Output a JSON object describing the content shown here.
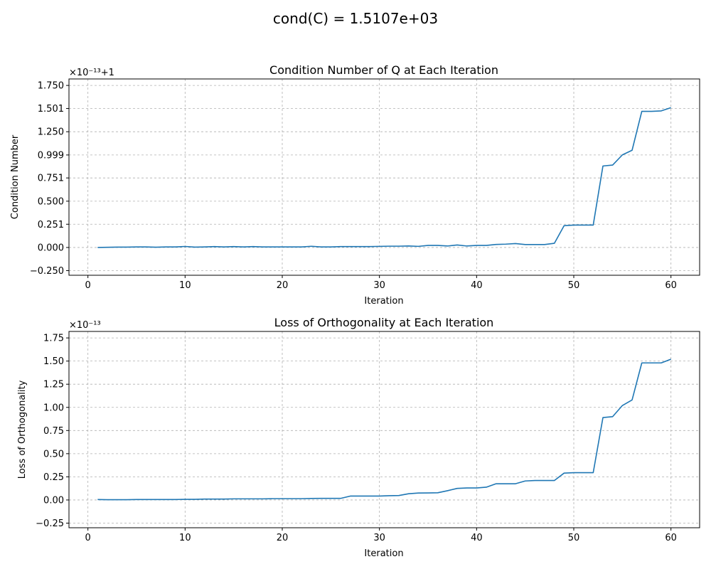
{
  "figure": {
    "suptitle": "cond(C) = 1.5107e+03"
  },
  "colors": {
    "line": "#1f77b4",
    "grid": "#b0b0b0"
  },
  "chart_data": [
    {
      "type": "line",
      "title": "Condition Number of Q at Each Iteration",
      "xlabel": "Iteration",
      "ylabel": "Condition Number",
      "offset_text": "×10⁻¹³+1",
      "grid": true,
      "xlim": [
        -1.95,
        62.95
      ],
      "ylim": [
        -0.3,
        1.82
      ],
      "x_ticks": [
        0,
        10,
        20,
        30,
        40,
        50,
        60
      ],
      "y_ticks": [
        -0.25,
        0.0,
        0.251,
        0.5,
        0.751,
        0.999,
        1.25,
        1.501,
        1.75
      ],
      "y_tick_labels": [
        "−0.250",
        "0.000",
        "0.251",
        "0.500",
        "0.751",
        "0.999",
        "1.250",
        "1.501",
        "1.750"
      ],
      "series": [
        {
          "x": [
            1,
            2,
            3,
            4,
            5,
            6,
            7,
            8,
            9,
            10,
            11,
            12,
            13,
            14,
            15,
            16,
            17,
            18,
            19,
            20,
            21,
            22,
            23,
            24,
            25,
            26,
            27,
            28,
            29,
            30,
            31,
            32,
            33,
            34,
            35,
            36,
            37,
            38,
            39,
            40,
            41,
            42,
            43,
            44,
            45,
            46,
            47,
            48,
            49,
            50,
            51,
            52,
            53,
            54,
            55,
            56,
            57,
            58,
            59,
            60
          ],
          "values": [
            0.0,
            0.002,
            0.004,
            0.004,
            0.006,
            0.006,
            0.003,
            0.006,
            0.006,
            0.011,
            0.004,
            0.006,
            0.01,
            0.006,
            0.01,
            0.006,
            0.01,
            0.006,
            0.006,
            0.006,
            0.006,
            0.006,
            0.013,
            0.006,
            0.006,
            0.01,
            0.01,
            0.01,
            0.01,
            0.012,
            0.014,
            0.014,
            0.016,
            0.012,
            0.022,
            0.022,
            0.016,
            0.027,
            0.016,
            0.022,
            0.022,
            0.033,
            0.036,
            0.042,
            0.032,
            0.032,
            0.032,
            0.045,
            0.235,
            0.242,
            0.242,
            0.242,
            0.88,
            0.89,
            1.0,
            1.05,
            1.47,
            1.47,
            1.475,
            1.51
          ]
        }
      ]
    },
    {
      "type": "line",
      "title": "Loss of Orthogonality at Each Iteration",
      "xlabel": "Iteration",
      "ylabel": "Loss of Orthogonality",
      "offset_text": "×10⁻¹³",
      "grid": true,
      "xlim": [
        -1.95,
        62.95
      ],
      "ylim": [
        -0.3,
        1.82
      ],
      "x_ticks": [
        0,
        10,
        20,
        30,
        40,
        50,
        60
      ],
      "y_ticks": [
        -0.25,
        0.0,
        0.25,
        0.5,
        0.75,
        1.0,
        1.25,
        1.5,
        1.75
      ],
      "y_tick_labels": [
        "−0.25",
        "0.00",
        "0.25",
        "0.50",
        "0.75",
        "1.00",
        "1.25",
        "1.50",
        "1.75"
      ],
      "series": [
        {
          "x": [
            1,
            2,
            3,
            4,
            5,
            6,
            7,
            8,
            9,
            10,
            11,
            12,
            13,
            14,
            15,
            16,
            17,
            18,
            19,
            20,
            21,
            22,
            23,
            24,
            25,
            26,
            27,
            28,
            29,
            30,
            31,
            32,
            33,
            34,
            35,
            36,
            37,
            38,
            39,
            40,
            41,
            42,
            43,
            44,
            45,
            46,
            47,
            48,
            49,
            50,
            51,
            52,
            53,
            54,
            55,
            56,
            57,
            58,
            59,
            60
          ],
          "values": [
            0.005,
            0.003,
            0.003,
            0.003,
            0.005,
            0.005,
            0.005,
            0.005,
            0.005,
            0.007,
            0.007,
            0.01,
            0.01,
            0.01,
            0.012,
            0.012,
            0.012,
            0.012,
            0.014,
            0.014,
            0.014,
            0.014,
            0.016,
            0.017,
            0.017,
            0.017,
            0.042,
            0.042,
            0.042,
            0.042,
            0.046,
            0.048,
            0.067,
            0.075,
            0.076,
            0.078,
            0.1,
            0.125,
            0.13,
            0.13,
            0.138,
            0.175,
            0.175,
            0.175,
            0.205,
            0.21,
            0.21,
            0.21,
            0.29,
            0.295,
            0.295,
            0.295,
            0.89,
            0.9,
            1.02,
            1.08,
            1.48,
            1.48,
            1.48,
            1.52
          ]
        }
      ]
    }
  ]
}
